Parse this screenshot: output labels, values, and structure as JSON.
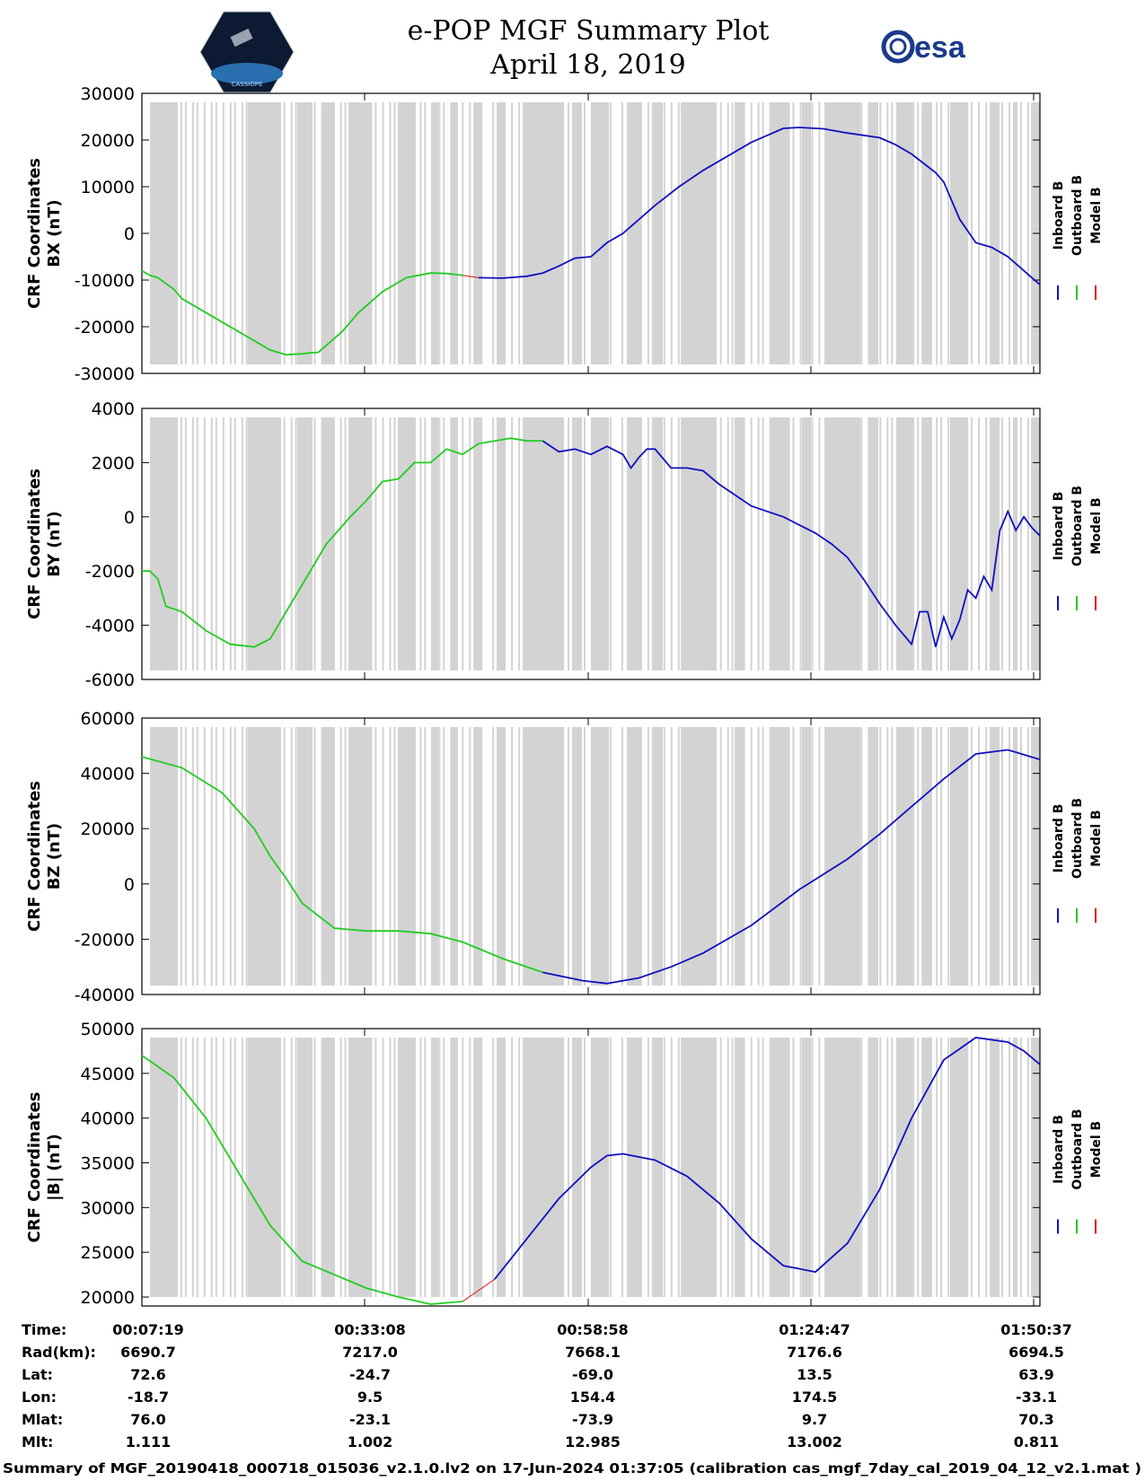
{
  "header": {
    "title_line1": "e-POP MGF Summary Plot",
    "title_line2": "April 18, 2019",
    "left_logo_text": "CASSIOPE",
    "right_logo_text": "esa"
  },
  "colors": {
    "inboard": "#1010c0",
    "outboard": "#22cc22",
    "model": "#e01010",
    "gap_shading": "#d3d3d3"
  },
  "legend": [
    "Inboard B",
    "Outboard B",
    "Model B"
  ],
  "chart_data": [
    {
      "type": "line",
      "id": "bx",
      "ylabel_line1": "CRF Coordinates",
      "ylabel_line2": "BX (nT)",
      "ylim": [
        -30000,
        30000
      ],
      "yticks": [
        30000,
        20000,
        10000,
        0,
        -10000,
        -20000,
        -30000
      ],
      "xlim": [
        0,
        112
      ],
      "switch_x": 41,
      "x": [
        0,
        1,
        2,
        4,
        5,
        7,
        10,
        13,
        16,
        18,
        20,
        21,
        22,
        23,
        25,
        27,
        30,
        33,
        36,
        38,
        40,
        42,
        45,
        48,
        50,
        52,
        54,
        56,
        58,
        60,
        62,
        64,
        67,
        70,
        73,
        76,
        78,
        80,
        82,
        85,
        88,
        92,
        94,
        96,
        99,
        100,
        102,
        104,
        106,
        108,
        110,
        112
      ],
      "values": [
        -8000,
        -9000,
        -9500,
        -12000,
        -14000,
        -16000,
        -19000,
        -22000,
        -25000,
        -26000,
        -25800,
        -25600,
        -25500,
        -24000,
        -21000,
        -17000,
        -12500,
        -9500,
        -8500,
        -8600,
        -9000,
        -9500,
        -9600,
        -9200,
        -8500,
        -7000,
        -5300,
        -5000,
        -2000,
        0,
        3000,
        6000,
        10000,
        13500,
        16500,
        19500,
        21000,
        22500,
        22700,
        22400,
        21500,
        20500,
        19000,
        17000,
        13000,
        11000,
        3000,
        -2000,
        -3000,
        -5000,
        -8000,
        -11000
      ]
    },
    {
      "type": "line",
      "id": "by",
      "ylabel_line1": "CRF Coordinates",
      "ylabel_line2": "BY (nT)",
      "ylim": [
        -6000,
        4000
      ],
      "yticks": [
        4000,
        2000,
        0,
        -2000,
        -4000,
        -6000
      ],
      "xlim": [
        0,
        112
      ],
      "switch_x": 50,
      "x": [
        0,
        1,
        2,
        3,
        5,
        8,
        11,
        14,
        16,
        18,
        20,
        23,
        26,
        28,
        30,
        32,
        34,
        36,
        38,
        40,
        42,
        44,
        46,
        48,
        50,
        52,
        54,
        56,
        58,
        60,
        61,
        62,
        63,
        64,
        66,
        68,
        70,
        72,
        74,
        76,
        78,
        80,
        82,
        84,
        86,
        88,
        90,
        92,
        94,
        96,
        97,
        98,
        99,
        100,
        101,
        102,
        103,
        104,
        105,
        106,
        107,
        108,
        109,
        110,
        111,
        112
      ],
      "values": [
        -2000,
        -2000,
        -2300,
        -3300,
        -3500,
        -4200,
        -4700,
        -4800,
        -4500,
        -3500,
        -2500,
        -1000,
        0,
        600,
        1300,
        1400,
        2000,
        2000,
        2500,
        2300,
        2700,
        2800,
        2900,
        2800,
        2800,
        2400,
        2500,
        2300,
        2600,
        2300,
        1800,
        2200,
        2500,
        2500,
        1800,
        1800,
        1700,
        1200,
        800,
        400,
        200,
        0,
        -300,
        -600,
        -1000,
        -1500,
        -2300,
        -3200,
        -4000,
        -4700,
        -3500,
        -3500,
        -4800,
        -3700,
        -4500,
        -3800,
        -2700,
        -3000,
        -2200,
        -2700,
        -500,
        200,
        -500,
        0,
        -400,
        -700
      ]
    },
    {
      "type": "line",
      "id": "bz",
      "ylabel_line1": "CRF Coordinates",
      "ylabel_line2": "BZ (nT)",
      "ylim": [
        -40000,
        60000
      ],
      "yticks": [
        60000,
        40000,
        20000,
        0,
        -20000,
        -40000
      ],
      "xlim": [
        0,
        112
      ],
      "switch_x": 50,
      "x": [
        0,
        5,
        10,
        14,
        16,
        18,
        20,
        24,
        28,
        32,
        36,
        40,
        45,
        50,
        55,
        58,
        62,
        66,
        70,
        76,
        82,
        88,
        92,
        96,
        100,
        104,
        108,
        112
      ],
      "values": [
        46000,
        42000,
        33000,
        20000,
        10000,
        2000,
        -7000,
        -16000,
        -17000,
        -17000,
        -18000,
        -21000,
        -27000,
        -32000,
        -35000,
        -36000,
        -34000,
        -30000,
        -25000,
        -15000,
        -2000,
        9000,
        18000,
        28000,
        38000,
        47000,
        48500,
        45000
      ]
    },
    {
      "type": "line",
      "id": "bmag",
      "ylabel_line1": "CRF Coordinates",
      "ylabel_line2": "|B| (nT)",
      "ylim": [
        19000,
        50000
      ],
      "yticks": [
        50000,
        45000,
        40000,
        35000,
        30000,
        25000,
        20000
      ],
      "xlim": [
        0,
        112
      ],
      "switch_x": 42,
      "x": [
        0,
        4,
        8,
        12,
        16,
        20,
        24,
        28,
        32,
        36,
        40,
        44,
        48,
        52,
        56,
        58,
        60,
        64,
        68,
        72,
        76,
        80,
        84,
        88,
        92,
        96,
        100,
        104,
        108,
        110,
        112
      ],
      "values": [
        47000,
        44500,
        40000,
        34000,
        28000,
        24000,
        22500,
        21000,
        20000,
        19200,
        19500,
        22000,
        26500,
        31000,
        34500,
        35800,
        36000,
        35300,
        33500,
        30500,
        26500,
        23500,
        22800,
        26000,
        32000,
        40000,
        46500,
        49000,
        48500,
        47500,
        46000
      ]
    }
  ],
  "info_table": {
    "row_labels": [
      "Time:",
      "Rad(km):",
      "Lat:",
      "Lon:",
      "Mlat:",
      "Mlt:"
    ],
    "columns": [
      [
        "00:07:19",
        "6690.7",
        "72.6",
        "-18.7",
        "76.0",
        "1.111"
      ],
      [
        "00:33:08",
        "7217.0",
        "-24.7",
        "9.5",
        "-23.1",
        "1.002"
      ],
      [
        "00:58:58",
        "7668.1",
        "-69.0",
        "154.4",
        "-73.9",
        "12.985"
      ],
      [
        "01:24:47",
        "7176.6",
        "13.5",
        "174.5",
        "9.7",
        "13.002"
      ],
      [
        "01:50:37",
        "6694.5",
        "63.9",
        "-33.1",
        "70.3",
        "0.811"
      ]
    ]
  },
  "footer": "Summary of MGF_20190418_000718_015036_v2.1.0.lv2 on 17-Jun-2024 01:37:05 (calibration cas_mgf_7day_cal_2019_04_12_v2.1.mat )"
}
